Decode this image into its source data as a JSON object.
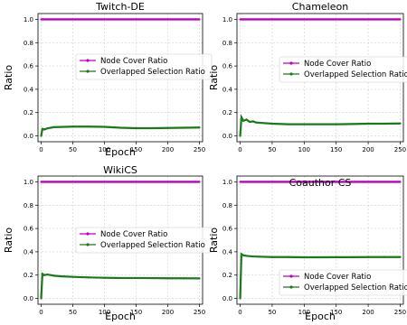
{
  "colors": {
    "node_cover": "#bb00bb",
    "overlapped": "#1a7a1a",
    "grid": "#cfcfcf",
    "axis": "#000000"
  },
  "chart_data": [
    {
      "type": "line",
      "title": "Twitch-DE",
      "xlabel": "Epoch",
      "ylabel": "Ratio",
      "xlim": [
        -5,
        255
      ],
      "ylim": [
        -0.05,
        1.05
      ],
      "xticks": [
        0,
        50,
        100,
        150,
        200,
        250
      ],
      "yticks": [
        0.0,
        0.2,
        0.4,
        0.6,
        0.8,
        1.0
      ],
      "grid": true,
      "legend": "center-right",
      "series": [
        {
          "name": "Node Cover Ratio",
          "x": [
            0,
            50,
            100,
            150,
            200,
            250
          ],
          "y": [
            1.0,
            1.0,
            1.0,
            1.0,
            1.0,
            1.0
          ]
        },
        {
          "name": "Overlapped Selection Ratio",
          "x": [
            0,
            2,
            5,
            10,
            20,
            50,
            75,
            100,
            125,
            150,
            175,
            200,
            225,
            250
          ],
          "y": [
            0.0,
            0.06,
            0.055,
            0.065,
            0.075,
            0.08,
            0.08,
            0.078,
            0.07,
            0.066,
            0.066,
            0.068,
            0.07,
            0.072
          ]
        }
      ]
    },
    {
      "type": "line",
      "title": "Chameleon",
      "xlabel": "",
      "ylabel": "Ratio",
      "xlim": [
        -5,
        255
      ],
      "ylim": [
        -0.05,
        1.05
      ],
      "xticks": [
        0,
        50,
        100,
        150,
        200,
        250
      ],
      "yticks": [
        0.0,
        0.2,
        0.4,
        0.6,
        0.8,
        1.0
      ],
      "grid": true,
      "legend": "center-right",
      "series": [
        {
          "name": "Node Cover Ratio",
          "x": [
            0,
            50,
            100,
            150,
            200,
            250
          ],
          "y": [
            1.0,
            1.0,
            1.0,
            1.0,
            1.0,
            1.0
          ]
        },
        {
          "name": "Overlapped Selection Ratio",
          "x": [
            0,
            2,
            5,
            10,
            15,
            20,
            25,
            50,
            75,
            100,
            125,
            150,
            175,
            200,
            225,
            250
          ],
          "y": [
            0.0,
            0.16,
            0.13,
            0.14,
            0.12,
            0.125,
            0.115,
            0.105,
            0.1,
            0.1,
            0.1,
            0.1,
            0.102,
            0.105,
            0.105,
            0.107
          ]
        }
      ]
    },
    {
      "type": "line",
      "title": "WikiCS",
      "xlabel": "Epoch",
      "ylabel": "Ratio",
      "xlim": [
        -5,
        255
      ],
      "ylim": [
        -0.05,
        1.05
      ],
      "xticks": [
        0,
        50,
        100,
        150,
        200,
        250
      ],
      "yticks": [
        0.0,
        0.2,
        0.4,
        0.6,
        0.8,
        1.0
      ],
      "grid": true,
      "legend": "center-right",
      "series": [
        {
          "name": "Node Cover Ratio",
          "x": [
            0,
            50,
            100,
            150,
            200,
            250
          ],
          "y": [
            1.0,
            1.0,
            1.0,
            1.0,
            1.0,
            1.0
          ]
        },
        {
          "name": "Overlapped Selection Ratio",
          "x": [
            0,
            2,
            5,
            10,
            20,
            30,
            50,
            75,
            100,
            125,
            150,
            175,
            200,
            225,
            250
          ],
          "y": [
            0.0,
            0.21,
            0.2,
            0.205,
            0.195,
            0.19,
            0.185,
            0.18,
            0.177,
            0.175,
            0.175,
            0.174,
            0.173,
            0.173,
            0.172
          ]
        }
      ]
    },
    {
      "type": "line",
      "title": "Coauthor CS",
      "xlabel": "Epoch",
      "ylabel": "Ratio",
      "xlim": [
        -5,
        255
      ],
      "ylim": [
        -0.05,
        1.05
      ],
      "xticks": [
        0,
        50,
        100,
        150,
        200,
        250
      ],
      "yticks": [
        0.0,
        0.2,
        0.4,
        0.6,
        0.8,
        1.0
      ],
      "grid": true,
      "legend": "lower-right",
      "series": [
        {
          "name": "Node Cover Ratio",
          "x": [
            0,
            50,
            100,
            150,
            200,
            250
          ],
          "y": [
            1.0,
            1.0,
            1.0,
            1.0,
            1.0,
            1.0
          ]
        },
        {
          "name": "Overlapped Selection Ratio",
          "x": [
            0,
            2,
            5,
            10,
            20,
            30,
            50,
            75,
            100,
            125,
            150,
            175,
            200,
            225,
            250
          ],
          "y": [
            0.0,
            0.38,
            0.37,
            0.365,
            0.36,
            0.358,
            0.355,
            0.355,
            0.353,
            0.353,
            0.354,
            0.354,
            0.355,
            0.355,
            0.355
          ]
        }
      ]
    }
  ]
}
